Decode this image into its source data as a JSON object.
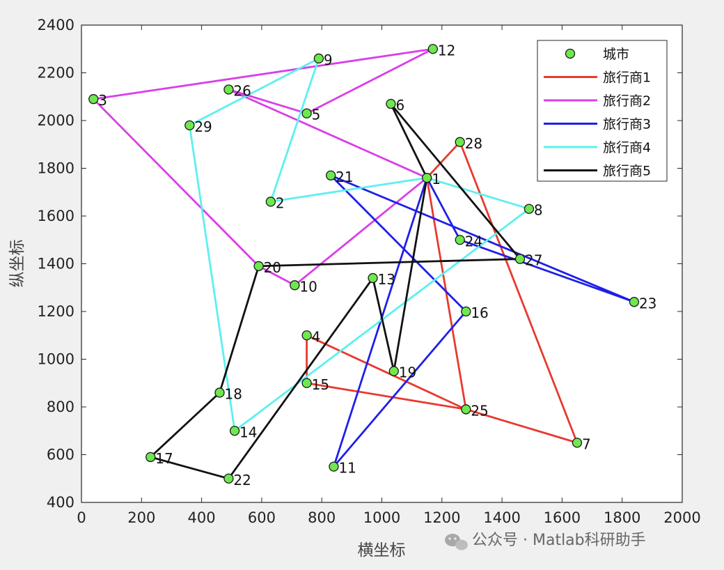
{
  "chart_data": {
    "type": "line",
    "title": "",
    "xlabel": "横坐标",
    "ylabel": "纵坐标",
    "xlim": [
      0,
      2000
    ],
    "ylim": [
      400,
      2400
    ],
    "xticks": [
      "0",
      "200",
      "400",
      "600",
      "800",
      "1000",
      "1200",
      "1400",
      "1600",
      "1800",
      "2000"
    ],
    "yticks": [
      "400",
      "600",
      "800",
      "1000",
      "1200",
      "1400",
      "1600",
      "1800",
      "2000",
      "2200",
      "2400"
    ],
    "grid": false,
    "legend_position": "top-right",
    "cities_series_name": "城市",
    "cities": [
      {
        "id": "1",
        "x": 1150,
        "y": 1760
      },
      {
        "id": "2",
        "x": 630,
        "y": 1660
      },
      {
        "id": "3",
        "x": 40,
        "y": 2090
      },
      {
        "id": "4",
        "x": 750,
        "y": 1100
      },
      {
        "id": "5",
        "x": 750,
        "y": 2030
      },
      {
        "id": "6",
        "x": 1030,
        "y": 2070
      },
      {
        "id": "7",
        "x": 1650,
        "y": 650
      },
      {
        "id": "8",
        "x": 1490,
        "y": 1630
      },
      {
        "id": "9",
        "x": 790,
        "y": 2260
      },
      {
        "id": "10",
        "x": 710,
        "y": 1310
      },
      {
        "id": "11",
        "x": 840,
        "y": 550
      },
      {
        "id": "12",
        "x": 1170,
        "y": 2300
      },
      {
        "id": "13",
        "x": 970,
        "y": 1340
      },
      {
        "id": "14",
        "x": 510,
        "y": 700
      },
      {
        "id": "15",
        "x": 750,
        "y": 900
      },
      {
        "id": "16",
        "x": 1280,
        "y": 1200
      },
      {
        "id": "17",
        "x": 230,
        "y": 590
      },
      {
        "id": "18",
        "x": 460,
        "y": 860
      },
      {
        "id": "19",
        "x": 1040,
        "y": 950
      },
      {
        "id": "20",
        "x": 590,
        "y": 1390
      },
      {
        "id": "21",
        "x": 830,
        "y": 1770
      },
      {
        "id": "22",
        "x": 490,
        "y": 500
      },
      {
        "id": "23",
        "x": 1840,
        "y": 1240
      },
      {
        "id": "24",
        "x": 1260,
        "y": 1500
      },
      {
        "id": "25",
        "x": 1280,
        "y": 790
      },
      {
        "id": "26",
        "x": 490,
        "y": 2130
      },
      {
        "id": "27",
        "x": 1460,
        "y": 1420
      },
      {
        "id": "28",
        "x": 1260,
        "y": 1910
      },
      {
        "id": "29",
        "x": 360,
        "y": 1980
      }
    ],
    "series": [
      {
        "name": "旅行商1",
        "color": "#e8392f",
        "route": [
          "1",
          "28",
          "7",
          "25",
          "15",
          "4",
          "25",
          "1"
        ]
      },
      {
        "name": "旅行商2",
        "color": "#d93ee8",
        "route": [
          "1",
          "26",
          "5",
          "12",
          "3",
          "20",
          "10",
          "1"
        ]
      },
      {
        "name": "旅行商3",
        "color": "#1f1fe8",
        "route": [
          "1",
          "24",
          "23",
          "21",
          "16",
          "11",
          "1"
        ]
      },
      {
        "name": "旅行商4",
        "color": "#5cf0f0",
        "route": [
          "1",
          "2",
          "9",
          "29",
          "14",
          "8",
          "1"
        ]
      },
      {
        "name": "旅行商5",
        "color": "#111111",
        "route": [
          "1",
          "6",
          "27",
          "20",
          "18",
          "17",
          "22",
          "13",
          "19",
          "1"
        ]
      }
    ],
    "marker_fill": "#6ee84e"
  },
  "watermark": "公众号 · Matlab科研助手"
}
